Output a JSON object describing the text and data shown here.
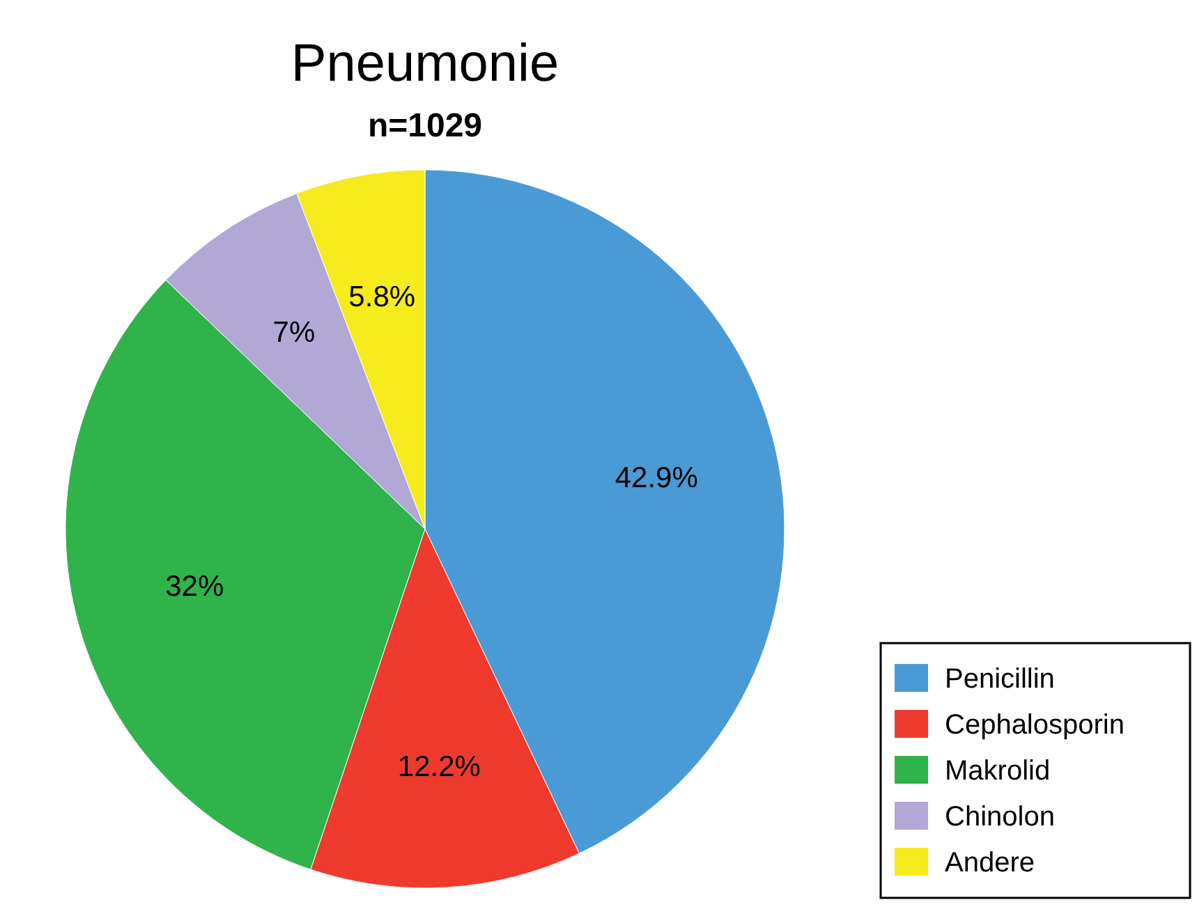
{
  "chart_data": {
    "type": "pie",
    "title": "Pneumonie",
    "subtitle": "n=1029",
    "categories": [
      "Penicillin",
      "Cephalosporin",
      "Makrolid",
      "Chinolon",
      "Andere"
    ],
    "values": [
      42.9,
      12.2,
      32,
      7,
      5.8
    ],
    "colors": [
      "#4a9ad6",
      "#ee3b2e",
      "#2fb34a",
      "#b1a8d6",
      "#f5eb1d"
    ],
    "value_labels": [
      "42.9%",
      "12.2%",
      "32%",
      "7%",
      "5.8%"
    ],
    "legend": "bottom right"
  }
}
